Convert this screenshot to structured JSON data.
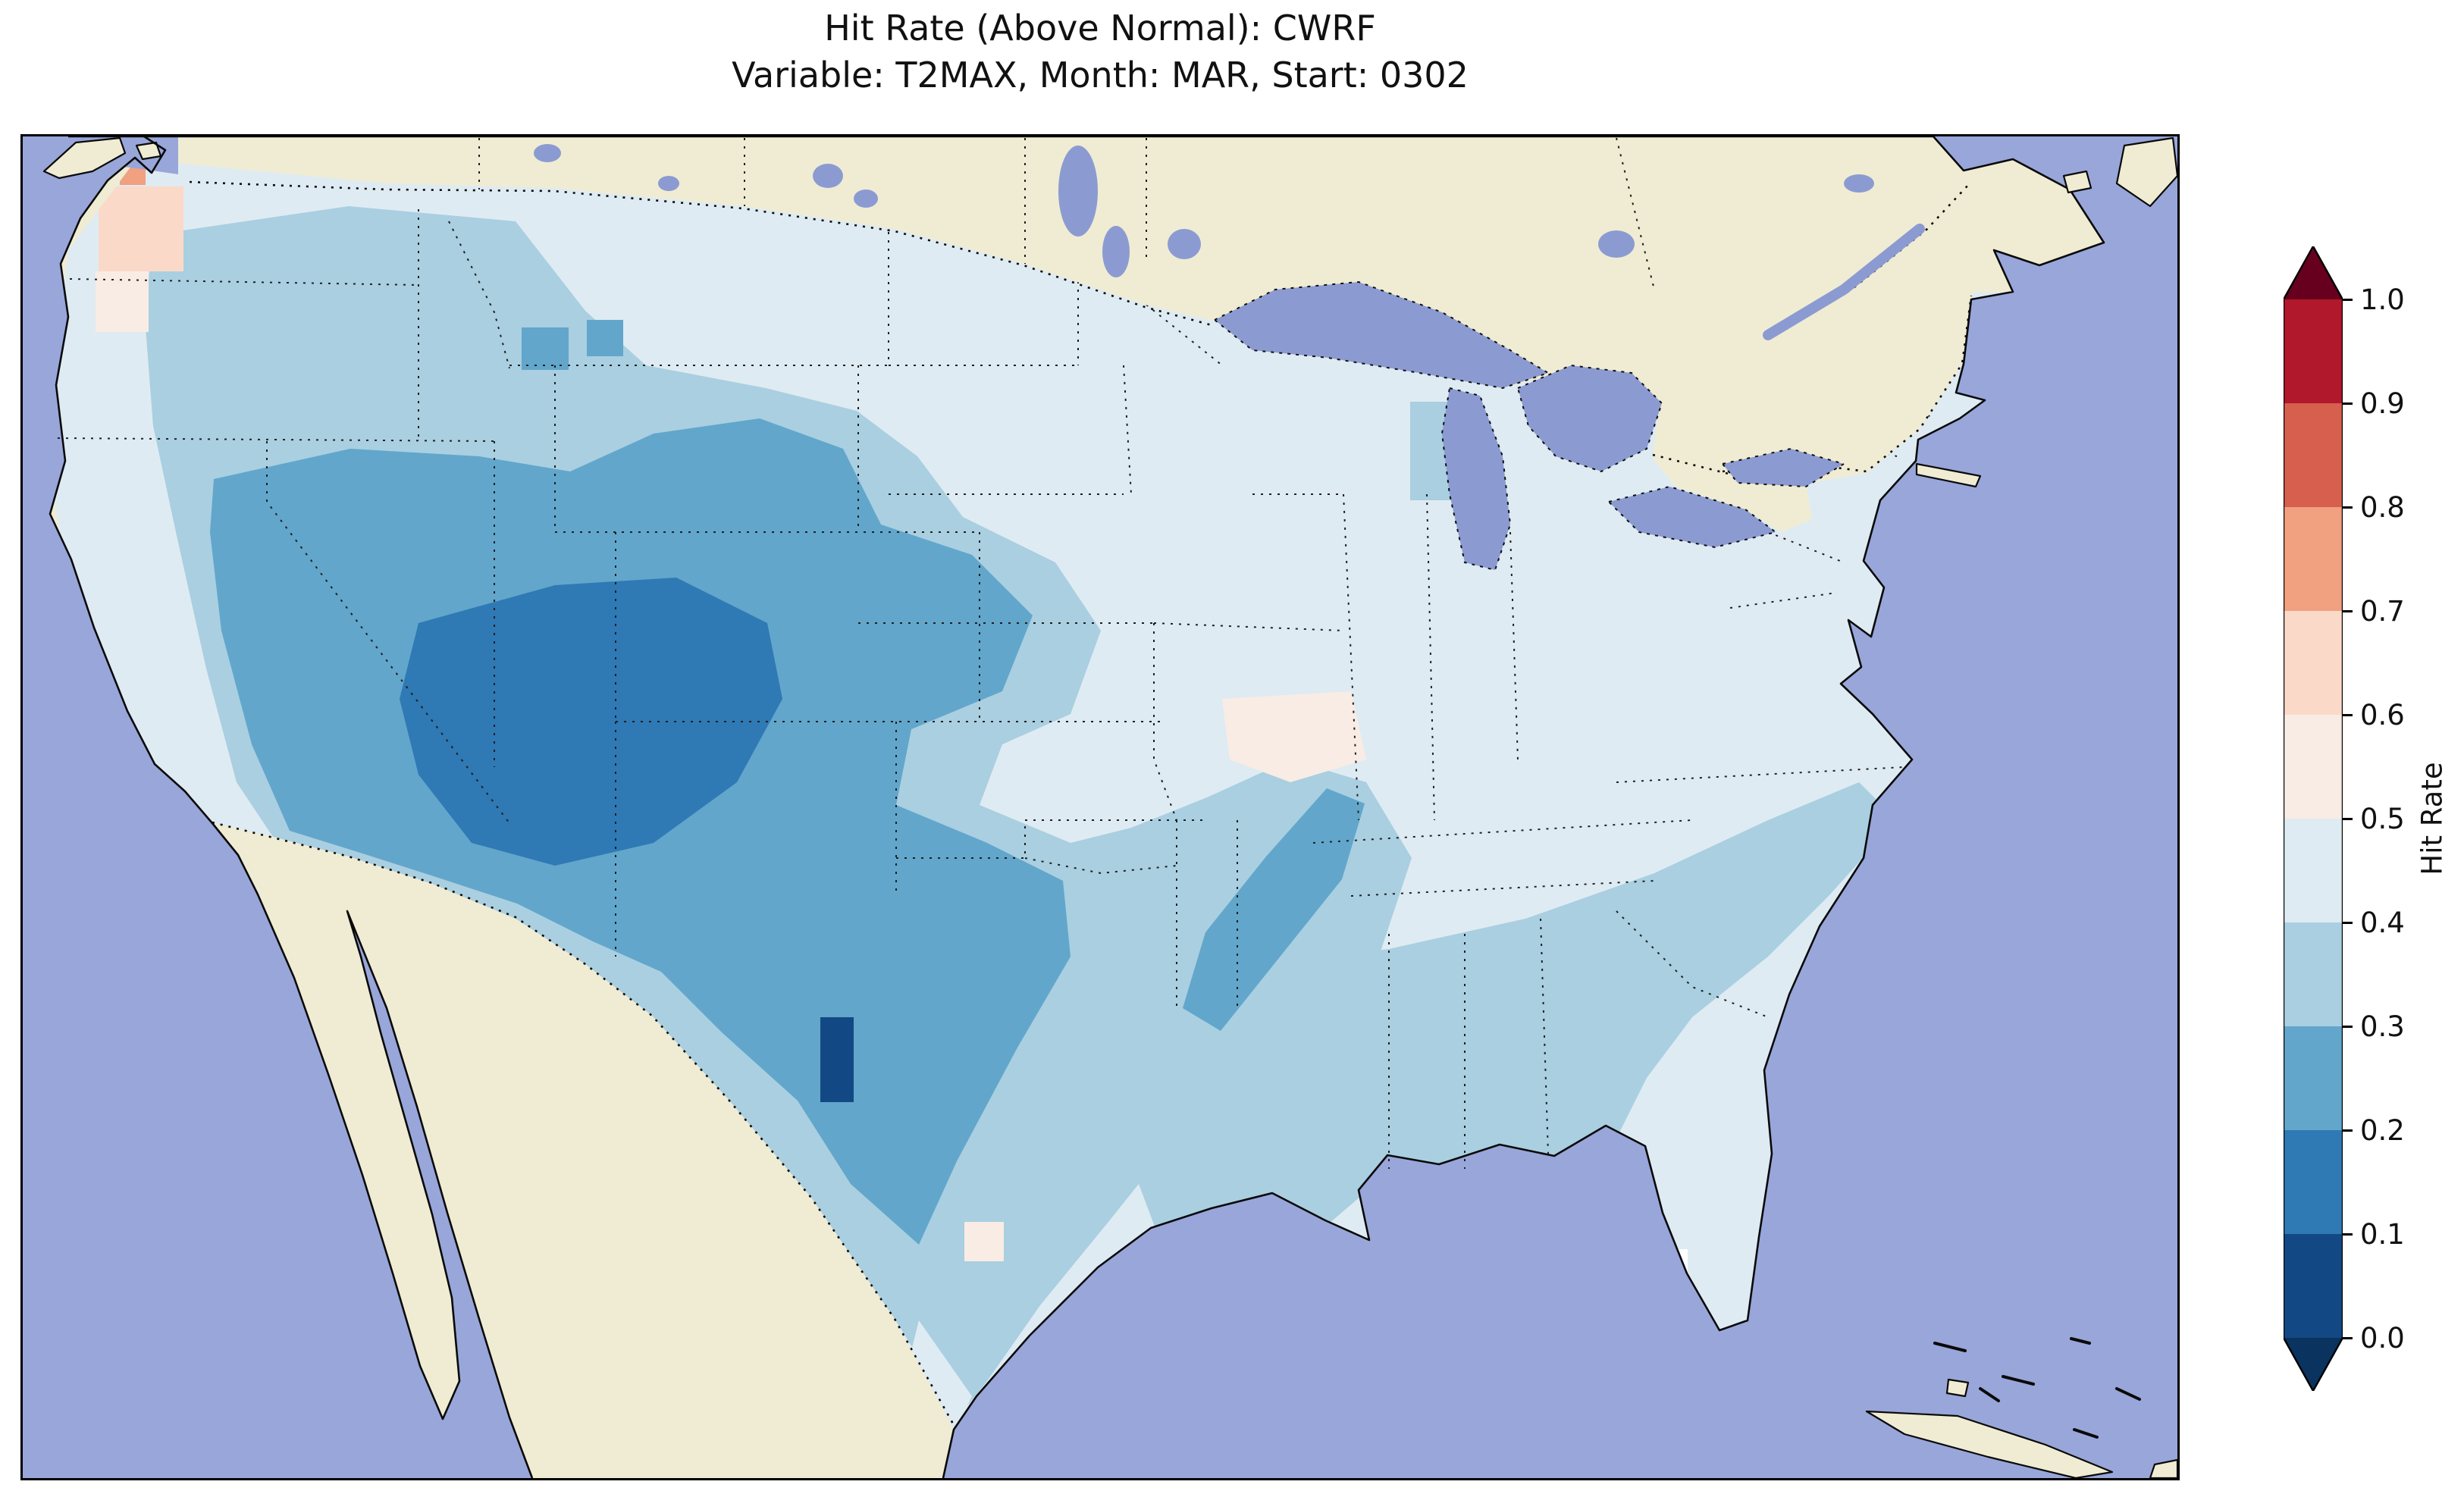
{
  "figure": {
    "title_line1": "Hit Rate (Above Normal): CWRF",
    "title_line2": "Variable: T2MAX, Month: MAR, Start: 0302"
  },
  "colorbar": {
    "label": "Hit Rate",
    "tick_labels": [
      "1.0",
      "0.9",
      "0.8",
      "0.7",
      "0.6",
      "0.5",
      "0.4",
      "0.3",
      "0.2",
      "0.1",
      "0.0"
    ],
    "segment_colors_top_to_bottom": [
      "#b2182b",
      "#d65f4d",
      "#f1a080",
      "#fbd9c8",
      "#f9ece4",
      "#dfebf2",
      "#a9cfe1",
      "#62a6cb",
      "#2f79b5",
      "#124984"
    ],
    "over_color": "#67001f",
    "under_color": "#0a3360"
  },
  "palette": {
    "ocean": "#98a6da",
    "land": "#f0ecd3",
    "lake": "#8b9bd2",
    "b01": "#124984",
    "b12": "#2f79b5",
    "b23": "#62a6cb",
    "b34": "#a9cfe1",
    "b45": "#dfebf2",
    "b56": "#f9ece4",
    "b67": "#fbd9c8",
    "b78": "#f1a080",
    "missing": "#ffffff"
  },
  "chart_data": {
    "type": "heatmap",
    "title": "Hit Rate (Above Normal): CWRF",
    "subtitle": "Variable: T2MAX, Month: MAR, Start: 0302",
    "model": "CWRF",
    "metric": "Hit Rate (Above Normal)",
    "variable": "T2MAX",
    "month": "MAR",
    "start": "0302",
    "colorbar_label": "Hit Rate",
    "colorbar_range": [
      0.0,
      1.0
    ],
    "colorbar_ticks": [
      0.0,
      0.1,
      0.2,
      0.3,
      0.4,
      0.5,
      0.6,
      0.7,
      0.8,
      0.9,
      1.0
    ],
    "colormap": "RdBu_r, discrete 0.1 bins, extended both ends",
    "region_values": [
      {
        "region": "Pacific Northwest coast (western Washington)",
        "hit_rate": 0.6
      },
      {
        "region": "Interior Northwest (E Washington, Oregon, Idaho)",
        "hit_rate": 0.35
      },
      {
        "region": "Great Basin (Nevada, Utah)",
        "hit_rate": 0.25
      },
      {
        "region": "Four Corners core (Arizona, New Mexico, SW Colorado)",
        "hit_rate": 0.15
      },
      {
        "region": "Colorado / western Kansas",
        "hit_rate": 0.25
      },
      {
        "region": "Texas panhandle and central Texas",
        "hit_rate": 0.25
      },
      {
        "region": "West Texas small dark cell",
        "hit_rate": 0.05
      },
      {
        "region": "Eastern Oklahoma - Arkansas diagonal band",
        "hit_rate": 0.25
      },
      {
        "region": "Gulf Coast / Southeast band (LA, MS, AL, GA, Carolinas)",
        "hit_rate": 0.35
      },
      {
        "region": "Midwest, Ohio Valley and Northeast",
        "hit_rate": 0.45
      },
      {
        "region": "Southern Missouri light patch",
        "hit_rate": 0.55
      },
      {
        "region": "Florida peninsula",
        "hit_rate": 0.45
      },
      {
        "region": "South Florida missing cells",
        "hit_rate": null
      },
      {
        "region": "California coast and Central Valley",
        "hit_rate": 0.45
      },
      {
        "region": "Northern Plains (Dakotas, Minnesota)",
        "hit_rate": 0.45
      }
    ]
  }
}
